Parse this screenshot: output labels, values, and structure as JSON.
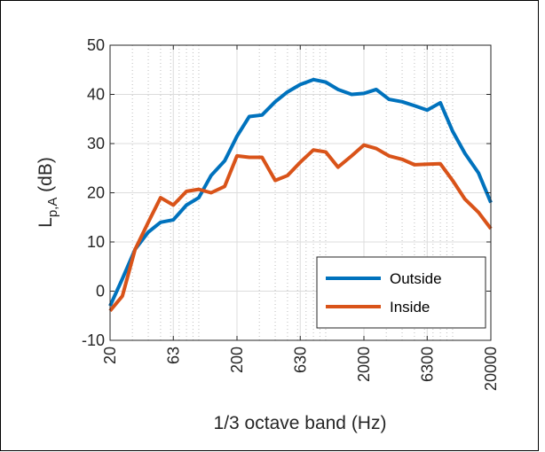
{
  "chart_data": {
    "type": "line",
    "xlabel": "1/3 octave band (Hz)",
    "ylabel_main": "L",
    "ylabel_sub": "p,A",
    "ylabel_unit": " (dB)",
    "x_scale": "log",
    "xlim": [
      20,
      20000
    ],
    "ylim": [
      -10,
      50
    ],
    "grid": true,
    "x_ticks": [
      20,
      63,
      200,
      630,
      2000,
      6300,
      20000
    ],
    "x_tick_labels": [
      "20",
      "63",
      "200",
      "630",
      "2000",
      "6300",
      "20000"
    ],
    "y_ticks": [
      -10,
      0,
      10,
      20,
      30,
      40,
      50
    ],
    "y_tick_labels": [
      "-10",
      "0",
      "10",
      "20",
      "30",
      "40",
      "50"
    ],
    "x": [
      20,
      25,
      31.5,
      40,
      50,
      63,
      80,
      100,
      125,
      160,
      200,
      250,
      315,
      400,
      500,
      630,
      800,
      1000,
      1250,
      1600,
      2000,
      2500,
      3150,
      4000,
      5000,
      6300,
      8000,
      10000,
      12500,
      16000,
      20000
    ],
    "series": [
      {
        "name": "Outside",
        "color": "#0072BD",
        "values": [
          -3,
          2.5,
          8.5,
          12,
          14,
          14.5,
          17.5,
          19,
          23.5,
          26.5,
          31.5,
          35.5,
          35.8,
          38.5,
          40.5,
          42,
          43,
          42.5,
          41,
          40,
          40.2,
          41,
          39,
          38.5,
          37.7,
          36.8,
          38.3,
          32.5,
          28,
          24,
          18
        ]
      },
      {
        "name": "Inside",
        "color": "#D95319",
        "values": [
          -4,
          -1,
          8.5,
          14,
          19,
          17.5,
          20.3,
          20.7,
          20,
          21.3,
          27.5,
          27.2,
          27.2,
          22.5,
          23.5,
          26.2,
          28.7,
          28.3,
          25.2,
          27.5,
          29.7,
          29,
          27.5,
          26.8,
          25.7,
          25.8,
          25.9,
          22.5,
          18.7,
          16,
          12.7
        ]
      }
    ],
    "legend_position": "bottom-right"
  }
}
